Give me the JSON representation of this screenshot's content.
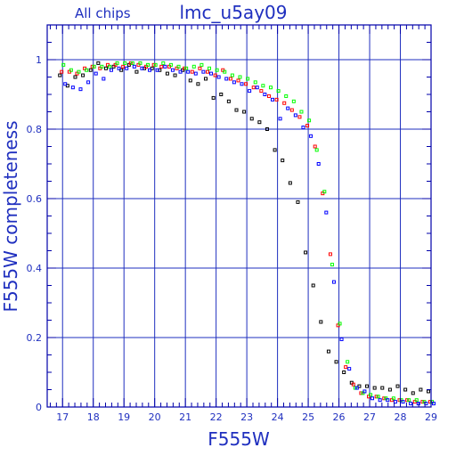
{
  "chart_data": {
    "type": "scatter",
    "title": "lmc_u5ay09",
    "subtitle": "All chips",
    "xlabel": "F555W",
    "ylabel": "F555W completeness",
    "xlim": [
      16.5,
      29
    ],
    "ylim": [
      0,
      1.1
    ],
    "x_ticks": [
      "17",
      "18",
      "19",
      "20",
      "21",
      "22",
      "23",
      "24",
      "25",
      "26",
      "27",
      "28",
      "29"
    ],
    "y_ticks": [
      "0",
      "0.2",
      "0.4",
      "0.6",
      "0.8",
      "1"
    ],
    "grid": true,
    "colors": {
      "axis": "#0000aa",
      "grid": "#1f2fbf",
      "text": "#1f2fbf",
      "black_series": "#000000",
      "red_series": "#ff0000",
      "green_series": "#00ff00",
      "blue_series": "#0000ff"
    },
    "series": [
      {
        "color_key": "black_series",
        "points": [
          [
            17.0,
            0.955
          ],
          [
            17.25,
            0.925
          ],
          [
            17.5,
            0.95
          ],
          [
            17.75,
            0.955
          ],
          [
            18.0,
            0.97
          ],
          [
            18.25,
            0.99
          ],
          [
            18.5,
            0.975
          ],
          [
            18.75,
            0.98
          ],
          [
            19.0,
            0.97
          ],
          [
            19.25,
            0.985
          ],
          [
            19.5,
            0.965
          ],
          [
            19.75,
            0.975
          ],
          [
            20.0,
            0.975
          ],
          [
            20.25,
            0.97
          ],
          [
            20.5,
            0.96
          ],
          [
            20.75,
            0.955
          ],
          [
            21.0,
            0.97
          ],
          [
            21.25,
            0.94
          ],
          [
            21.5,
            0.93
          ],
          [
            21.75,
            0.945
          ],
          [
            22.0,
            0.89
          ],
          [
            22.25,
            0.9
          ],
          [
            22.5,
            0.88
          ],
          [
            22.75,
            0.855
          ],
          [
            23.0,
            0.85
          ],
          [
            23.25,
            0.83
          ],
          [
            23.5,
            0.82
          ],
          [
            23.75,
            0.8
          ],
          [
            24.0,
            0.74
          ],
          [
            24.25,
            0.71
          ],
          [
            24.5,
            0.645
          ],
          [
            24.75,
            0.59
          ],
          [
            25.0,
            0.445
          ],
          [
            25.25,
            0.35
          ],
          [
            25.5,
            0.245
          ],
          [
            25.75,
            0.16
          ],
          [
            26.0,
            0.13
          ],
          [
            26.25,
            0.1
          ],
          [
            26.5,
            0.07
          ],
          [
            26.75,
            0.06
          ],
          [
            27.0,
            0.06
          ],
          [
            27.25,
            0.055
          ],
          [
            27.5,
            0.055
          ],
          [
            27.75,
            0.05
          ],
          [
            28.0,
            0.06
          ],
          [
            28.25,
            0.05
          ],
          [
            28.5,
            0.04
          ],
          [
            28.75,
            0.05
          ],
          [
            29.0,
            0.045
          ]
        ]
      },
      {
        "color_key": "red_series",
        "points": [
          [
            17.0,
            0.965
          ],
          [
            17.25,
            0.965
          ],
          [
            17.5,
            0.96
          ],
          [
            17.75,
            0.975
          ],
          [
            18.0,
            0.98
          ],
          [
            18.25,
            0.975
          ],
          [
            18.5,
            0.985
          ],
          [
            18.75,
            0.985
          ],
          [
            19.0,
            0.98
          ],
          [
            19.25,
            0.99
          ],
          [
            19.5,
            0.985
          ],
          [
            19.75,
            0.98
          ],
          [
            20.0,
            0.985
          ],
          [
            20.25,
            0.98
          ],
          [
            20.5,
            0.98
          ],
          [
            20.75,
            0.975
          ],
          [
            21.0,
            0.975
          ],
          [
            21.25,
            0.965
          ],
          [
            21.5,
            0.975
          ],
          [
            21.75,
            0.965
          ],
          [
            22.0,
            0.955
          ],
          [
            22.25,
            0.97
          ],
          [
            22.5,
            0.945
          ],
          [
            22.75,
            0.94
          ],
          [
            23.0,
            0.93
          ],
          [
            23.25,
            0.92
          ],
          [
            23.5,
            0.91
          ],
          [
            23.75,
            0.895
          ],
          [
            24.0,
            0.885
          ],
          [
            24.25,
            0.875
          ],
          [
            24.5,
            0.855
          ],
          [
            24.75,
            0.835
          ],
          [
            25.0,
            0.81
          ],
          [
            25.25,
            0.75
          ],
          [
            25.5,
            0.615
          ],
          [
            25.75,
            0.44
          ],
          [
            26.0,
            0.235
          ],
          [
            26.25,
            0.115
          ],
          [
            26.5,
            0.065
          ],
          [
            26.75,
            0.04
          ],
          [
            27.0,
            0.03
          ],
          [
            27.25,
            0.03
          ],
          [
            27.5,
            0.025
          ],
          [
            27.75,
            0.02
          ],
          [
            28.0,
            0.02
          ],
          [
            28.25,
            0.02
          ],
          [
            28.5,
            0.015
          ],
          [
            28.75,
            0.015
          ],
          [
            29.0,
            0.015
          ]
        ]
      },
      {
        "color_key": "green_series",
        "points": [
          [
            17.0,
            0.985
          ],
          [
            17.25,
            0.97
          ],
          [
            17.5,
            0.965
          ],
          [
            17.75,
            0.97
          ],
          [
            18.0,
            0.98
          ],
          [
            18.25,
            0.98
          ],
          [
            18.5,
            0.98
          ],
          [
            18.75,
            0.99
          ],
          [
            19.0,
            0.99
          ],
          [
            19.25,
            0.99
          ],
          [
            19.5,
            0.99
          ],
          [
            19.75,
            0.985
          ],
          [
            20.0,
            0.985
          ],
          [
            20.25,
            0.99
          ],
          [
            20.5,
            0.985
          ],
          [
            20.75,
            0.98
          ],
          [
            21.0,
            0.975
          ],
          [
            21.25,
            0.98
          ],
          [
            21.5,
            0.985
          ],
          [
            21.75,
            0.975
          ],
          [
            22.0,
            0.97
          ],
          [
            22.25,
            0.965
          ],
          [
            22.5,
            0.955
          ],
          [
            22.75,
            0.95
          ],
          [
            23.0,
            0.945
          ],
          [
            23.25,
            0.935
          ],
          [
            23.5,
            0.925
          ],
          [
            23.75,
            0.92
          ],
          [
            24.0,
            0.91
          ],
          [
            24.25,
            0.895
          ],
          [
            24.5,
            0.88
          ],
          [
            24.75,
            0.85
          ],
          [
            25.0,
            0.825
          ],
          [
            25.25,
            0.74
          ],
          [
            25.5,
            0.62
          ],
          [
            25.75,
            0.41
          ],
          [
            26.0,
            0.24
          ],
          [
            26.25,
            0.13
          ],
          [
            26.5,
            0.055
          ],
          [
            26.75,
            0.04
          ],
          [
            27.0,
            0.035
          ],
          [
            27.25,
            0.03
          ],
          [
            27.5,
            0.025
          ],
          [
            27.75,
            0.025
          ],
          [
            28.0,
            0.02
          ],
          [
            28.25,
            0.02
          ],
          [
            28.5,
            0.02
          ],
          [
            28.75,
            0.015
          ],
          [
            29.0,
            0.015
          ]
        ]
      },
      {
        "color_key": "blue_series",
        "points": [
          [
            17.0,
            0.93
          ],
          [
            17.25,
            0.92
          ],
          [
            17.5,
            0.915
          ],
          [
            17.75,
            0.935
          ],
          [
            18.0,
            0.96
          ],
          [
            18.25,
            0.945
          ],
          [
            18.5,
            0.97
          ],
          [
            18.75,
            0.975
          ],
          [
            19.0,
            0.975
          ],
          [
            19.25,
            0.98
          ],
          [
            19.5,
            0.975
          ],
          [
            19.75,
            0.97
          ],
          [
            20.0,
            0.97
          ],
          [
            20.25,
            0.98
          ],
          [
            20.5,
            0.97
          ],
          [
            20.75,
            0.965
          ],
          [
            21.0,
            0.965
          ],
          [
            21.25,
            0.96
          ],
          [
            21.5,
            0.965
          ],
          [
            21.75,
            0.96
          ],
          [
            22.0,
            0.95
          ],
          [
            22.25,
            0.945
          ],
          [
            22.5,
            0.935
          ],
          [
            22.75,
            0.93
          ],
          [
            23.0,
            0.91
          ],
          [
            23.25,
            0.92
          ],
          [
            23.5,
            0.9
          ],
          [
            23.75,
            0.885
          ],
          [
            24.0,
            0.83
          ],
          [
            24.25,
            0.86
          ],
          [
            24.5,
            0.84
          ],
          [
            24.75,
            0.805
          ],
          [
            25.0,
            0.78
          ],
          [
            25.25,
            0.7
          ],
          [
            25.5,
            0.56
          ],
          [
            25.75,
            0.36
          ],
          [
            26.0,
            0.195
          ],
          [
            26.25,
            0.11
          ],
          [
            26.5,
            0.055
          ],
          [
            26.75,
            0.045
          ],
          [
            27.0,
            0.025
          ],
          [
            27.25,
            0.02
          ],
          [
            27.5,
            0.02
          ],
          [
            27.75,
            0.015
          ],
          [
            28.0,
            0.015
          ],
          [
            28.25,
            0.01
          ],
          [
            28.5,
            0.01
          ],
          [
            28.75,
            0.01
          ],
          [
            29.0,
            0.01
          ]
        ]
      }
    ]
  }
}
